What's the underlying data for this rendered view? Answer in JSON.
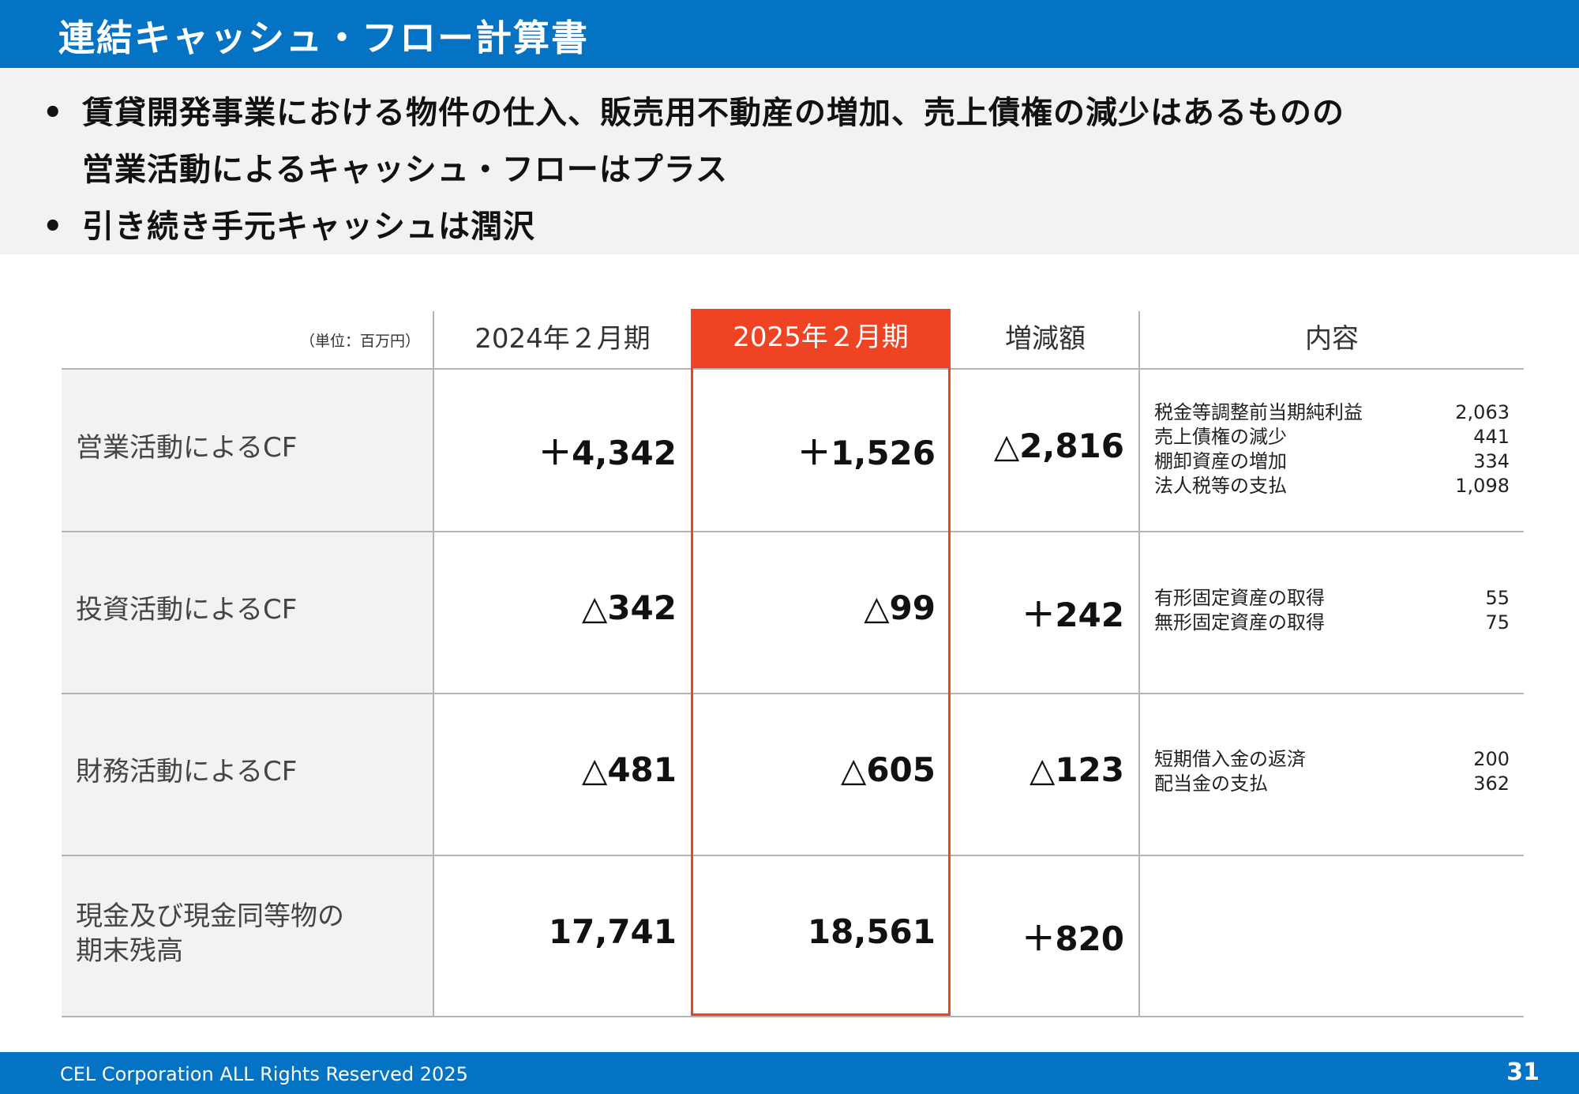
{
  "header": {
    "title": "連結キャッシュ・フロー計算書"
  },
  "bullets": {
    "dot": "•",
    "b1_line1": "賃貸開発事業における物件の仕入、販売用不動産の増加、売上債権の減少はあるものの",
    "b1_line2": "営業活動によるキャッシュ・フローはプラス",
    "b2": "引き続き手元キャッシュは潤沢"
  },
  "table": {
    "unit": "（単位：百万円）",
    "headers": {
      "fy2024": "2024年２月期",
      "fy2025": "2025年２月期",
      "change": "増減額",
      "content": "内容"
    },
    "rows": [
      {
        "label": "営業活動によるCF",
        "fy2024": "＋4,342",
        "fy2025": "＋1,526",
        "change": "△2,816",
        "details": [
          {
            "item": "税金等調整前当期純利益",
            "value": "2,063"
          },
          {
            "item": "売上債権の減少",
            "value": "441"
          },
          {
            "item": "棚卸資産の増加",
            "value": "334"
          },
          {
            "item": "法人税等の支払",
            "value": "1,098"
          }
        ]
      },
      {
        "label": "投資活動によるCF",
        "fy2024": "△342",
        "fy2025": "△99",
        "change": "＋242",
        "details": [
          {
            "item": "有形固定資産の取得",
            "value": "55"
          },
          {
            "item": "無形固定資産の取得",
            "value": "75"
          }
        ]
      },
      {
        "label": "財務活動によるCF",
        "fy2024": "△481",
        "fy2025": "△605",
        "change": "△123",
        "details": [
          {
            "item": "短期借入金の返済",
            "value": "200"
          },
          {
            "item": "配当金の支払",
            "value": "362"
          }
        ]
      },
      {
        "label_line1": "現金及び現金同等物の",
        "label_line2": "期末残高",
        "fy2024": "17,741",
        "fy2025": "18,561",
        "change": "＋820"
      }
    ],
    "highlight_color": "#ee4424"
  },
  "footer": {
    "copyright": "CEL Corporation ALL Rights Reserved 2025",
    "page_number": "31"
  },
  "colors": {
    "brand_blue": "#0573c3",
    "panel_gray": "#f2f2f2"
  }
}
